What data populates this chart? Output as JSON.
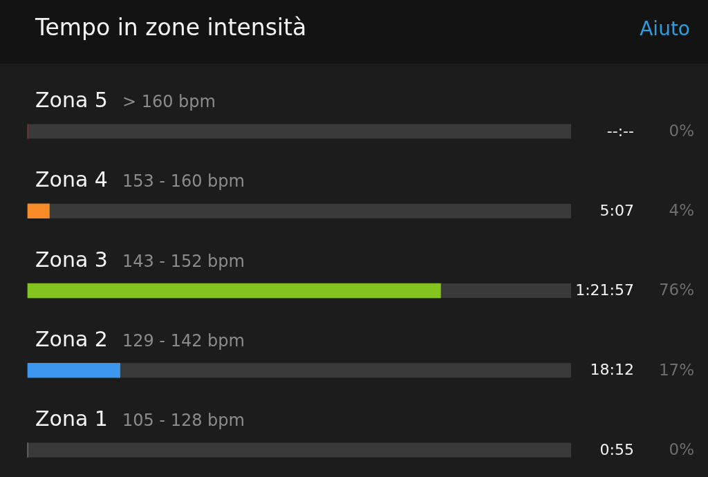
{
  "chart_data": {
    "type": "bar",
    "orientation": "horizontal",
    "title": "Tempo in zone intensità",
    "categories": [
      "Zona 5",
      "Zona 4",
      "Zona 3",
      "Zona 2",
      "Zona 1"
    ],
    "values": [
      0,
      4,
      76,
      17,
      0
    ],
    "colors": [
      "#e8412c",
      "#f68b27",
      "#84c41f",
      "#3c97ee",
      "#c8c8c8"
    ],
    "value_labels": [
      "0%",
      "4%",
      "76%",
      "17%",
      "0%"
    ],
    "xlim": [
      0,
      100
    ],
    "tick_labels": "y",
    "annotations": [
      "> 160 bpm",
      "153 - 160 bpm",
      "143 - 152 bpm",
      "129 - 142 bpm",
      "105 - 128 bpm",
      "--:--",
      "5:07",
      "1:21:57",
      "18:12",
      "0:55",
      "Aiuto"
    ]
  }
}
